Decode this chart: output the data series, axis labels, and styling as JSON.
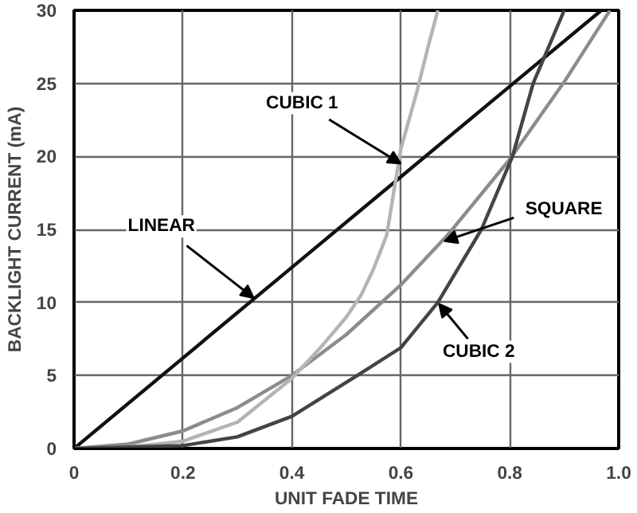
{
  "chart_data": {
    "type": "line",
    "xlabel": "UNIT FADE TIME",
    "ylabel": "BACKLIGHT CURRENT (mA)",
    "xlim": [
      0,
      1
    ],
    "ylim": [
      0,
      30
    ],
    "xticks": [
      0,
      0.2,
      0.4,
      0.6,
      0.8,
      {
        "value": 1,
        "label": "1.0"
      }
    ],
    "yticks": [
      0,
      5,
      10,
      15,
      20,
      25,
      30
    ],
    "grid": true,
    "marker": "none",
    "line_style": "solid",
    "series": [
      {
        "color": "#111111",
        "x": [
          0,
          0.2,
          0.4,
          0.6,
          0.8,
          0.968
        ],
        "values": [
          0,
          6.2,
          12.4,
          18.6,
          24.8,
          30
        ]
      },
      {
        "color": "#8c8c8c",
        "x": [
          0,
          0.1,
          0.2,
          0.3,
          0.4,
          0.5,
          0.6,
          0.688,
          0.8,
          0.9,
          0.984
        ],
        "values": [
          0,
          0.3,
          1.2,
          2.8,
          5,
          7.8,
          11.2,
          14.7,
          19.8,
          25.1,
          30
        ]
      },
      {
        "color": "#b4b4b4",
        "x": [
          0,
          0.1,
          0.2,
          0.3,
          0.4,
          0.45,
          0.5,
          0.527,
          0.55,
          0.574,
          0.6,
          0.63,
          0.65,
          0.668
        ],
        "values": [
          0,
          0.1,
          0.5,
          1.8,
          4.8,
          6.8,
          9,
          10.5,
          12.3,
          14.6,
          20.5,
          24.5,
          27.5,
          30
        ]
      },
      {
        "color": "#444444",
        "x": [
          0,
          0.1,
          0.2,
          0.3,
          0.4,
          0.52,
          0.6,
          0.668,
          0.748,
          0.805,
          0.843,
          0.9
        ],
        "values": [
          0,
          0.1,
          0.2,
          0.8,
          2.2,
          5,
          6.9,
          10,
          15,
          20,
          25,
          30
        ]
      }
    ],
    "annotations": [
      {
        "text": "CUBIC 1",
        "x": 0.6,
        "y": 19.5
      },
      {
        "text": "LINEAR",
        "x": 0.33,
        "y": 10.3
      },
      {
        "text": "SQUARE",
        "x": 0.68,
        "y": 14.2
      },
      {
        "text": "CUBIC 2",
        "x": 0.67,
        "y": 9.9
      }
    ]
  }
}
